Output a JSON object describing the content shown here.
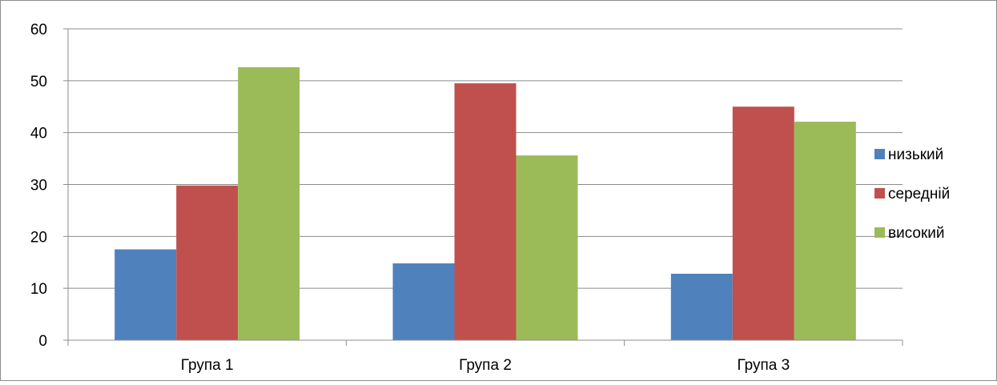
{
  "chart_data": {
    "type": "bar",
    "categories": [
      "Група 1",
      "Група 2",
      "Група 3"
    ],
    "series": [
      {
        "name": "низький",
        "color": "#4F81BD",
        "values": [
          17.5,
          14.8,
          12.8
        ]
      },
      {
        "name": "середній",
        "color": "#C0504D",
        "values": [
          29.8,
          49.5,
          45.0
        ]
      },
      {
        "name": "високий",
        "color": "#9BBB59",
        "values": [
          52.6,
          35.6,
          42.1
        ]
      }
    ],
    "title": "",
    "xlabel": "",
    "ylabel": "",
    "ylim": [
      0,
      60
    ],
    "yticks": [
      "0",
      "10",
      "20",
      "30",
      "40",
      "50",
      "60"
    ],
    "grid": true,
    "legend_position": "right"
  }
}
